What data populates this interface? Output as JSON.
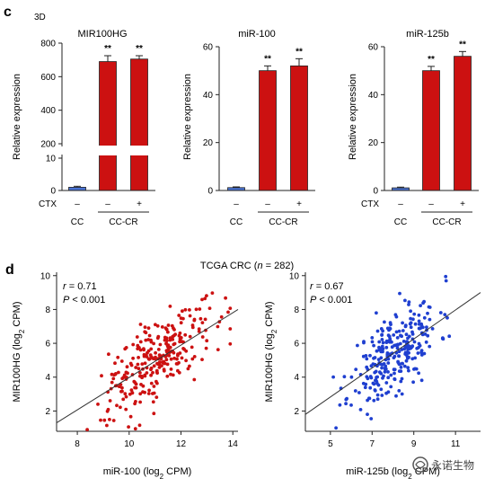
{
  "figure": {
    "panel_c_letter": "c",
    "panel_c_sublabel": "3D",
    "panel_d_letter": "d",
    "panel_d_title_prefix": "TCGA CRC (",
    "panel_d_title_n": "n",
    "panel_d_title_suffix": " = 282)",
    "watermark": "永诺生物"
  },
  "colors": {
    "red": "#cc1111",
    "blue": "#1f3fd0",
    "bar_blue": "#4a74d4",
    "axis": "#222222"
  },
  "icons": {
    "watermark_logo": "watermark-logo-icon"
  },
  "chart_data": [
    {
      "type": "bar",
      "title": "MIR100HG",
      "ylabel": "Relative expression",
      "broken_axis": true,
      "ylim_lower": [
        0,
        10
      ],
      "ylim_upper": [
        200,
        800
      ],
      "yticks_lower": [
        "0",
        "10"
      ],
      "yticks_upper": [
        "200",
        "400",
        "600",
        "800"
      ],
      "ctx_label": "CTX",
      "groups": [
        {
          "label": "CC",
          "bars": [
            {
              "ctx": "–",
              "value": 1,
              "err": 0.3,
              "color": "#4a74d4",
              "sig": ""
            }
          ]
        },
        {
          "label": "CC-CR",
          "bars": [
            {
              "ctx": "–",
              "value": 690,
              "err": 35,
              "color": "#cc1111",
              "sig": "**"
            },
            {
              "ctx": "+",
              "value": 705,
              "err": 20,
              "color": "#cc1111",
              "sig": "**"
            }
          ]
        }
      ]
    },
    {
      "type": "bar",
      "title": "miR-100",
      "ylabel": "Relative expression",
      "broken_axis": false,
      "ylim": [
        0,
        60
      ],
      "yticks": [
        "0",
        "20",
        "40",
        "60"
      ],
      "ctx_label": "",
      "groups": [
        {
          "label": "CC",
          "bars": [
            {
              "ctx": "–",
              "value": 1.2,
              "err": 0.3,
              "color": "#4a74d4",
              "sig": ""
            }
          ]
        },
        {
          "label": "CC-CR",
          "bars": [
            {
              "ctx": "–",
              "value": 50,
              "err": 2,
              "color": "#cc1111",
              "sig": "**"
            },
            {
              "ctx": "+",
              "value": 52,
              "err": 3,
              "color": "#cc1111",
              "sig": "**"
            }
          ]
        }
      ]
    },
    {
      "type": "bar",
      "title": "miR-125b",
      "ylabel": "Relative expression",
      "broken_axis": false,
      "ylim": [
        0,
        60
      ],
      "yticks": [
        "0",
        "20",
        "40",
        "60"
      ],
      "ctx_label": "CTX",
      "groups": [
        {
          "label": "CC",
          "bars": [
            {
              "ctx": "–",
              "value": 1.1,
              "err": 0.3,
              "color": "#4a74d4",
              "sig": ""
            }
          ]
        },
        {
          "label": "CC-CR",
          "bars": [
            {
              "ctx": "–",
              "value": 50,
              "err": 1.8,
              "color": "#cc1111",
              "sig": "**"
            },
            {
              "ctx": "+",
              "value": 56,
              "err": 2,
              "color": "#cc1111",
              "sig": "**"
            }
          ]
        }
      ]
    },
    {
      "type": "scatter",
      "xlabel_pre": "miR-100 (log",
      "xlabel_sub": "2",
      "xlabel_post": " CPM)",
      "ylabel_pre": "MIR100HG (log",
      "ylabel_sub": "2",
      "ylabel_post": " CPM)",
      "xlim": [
        7.2,
        14.2
      ],
      "ylim": [
        0.8,
        10.2
      ],
      "xticks": [
        8,
        10,
        12,
        14
      ],
      "yticks": [
        2,
        4,
        6,
        8,
        10
      ],
      "r_label": "r",
      "r_value": " = 0.71",
      "p_label": "P",
      "p_value": " < 0.001",
      "fit": {
        "x0": 7.2,
        "y0": 1.3,
        "x1": 14.2,
        "y1": 8.0
      },
      "n_points": 282,
      "color": "#cc1111",
      "seed": 7,
      "cloud": {
        "x_mean": 11.0,
        "x_sd": 1.05,
        "x_min": 7.4,
        "x_max": 13.9,
        "slope": 0.957,
        "intercept": -5.59,
        "resid_sd": 1.15,
        "y_min": 0.9,
        "y_max": 10.0
      }
    },
    {
      "type": "scatter",
      "xlabel_pre": "miR-125b (log",
      "xlabel_sub": "2",
      "xlabel_post": " CPM)",
      "ylabel_pre": "MIR100HG (log",
      "ylabel_sub": "2",
      "ylabel_post": " CPM)",
      "xlim": [
        3.8,
        12.2
      ],
      "ylim": [
        0.8,
        10.2
      ],
      "xticks": [
        5,
        7,
        9,
        11
      ],
      "yticks": [
        2,
        4,
        6,
        8,
        10
      ],
      "r_label": "r",
      "r_value": " = 0.67",
      "p_label": "P",
      "p_value": " < 0.001",
      "fit": {
        "x0": 3.8,
        "y0": 1.8,
        "x1": 12.2,
        "y1": 9.0
      },
      "n_points": 282,
      "color": "#1f3fd0",
      "seed": 11,
      "cloud": {
        "x_mean": 8.1,
        "x_sd": 1.05,
        "x_min": 4.0,
        "x_max": 12.0,
        "slope": 0.857,
        "intercept": -1.46,
        "resid_sd": 1.2,
        "y_min": 0.9,
        "y_max": 10.0
      }
    }
  ]
}
